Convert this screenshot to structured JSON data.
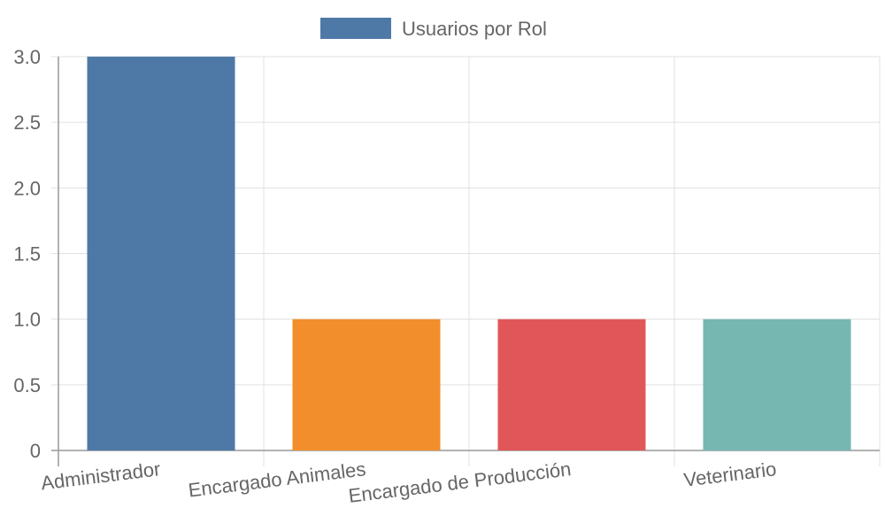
{
  "chart_data": {
    "type": "bar",
    "categories": [
      "Administrador",
      "Encargado Animales",
      "Encargado de Producción",
      "Veterinario"
    ],
    "series": [
      {
        "name": "Usuarios por Rol",
        "values": [
          3,
          1,
          1,
          1
        ],
        "colors": [
          "#4e79a7",
          "#f28e2b",
          "#e15759",
          "#76b7b2"
        ]
      }
    ],
    "ylim": [
      0,
      3
    ],
    "yticks": [
      "0",
      "0.5",
      "1.0",
      "1.5",
      "2.0",
      "2.5",
      "3.0"
    ],
    "grid": true,
    "legend": "top-center",
    "legend_color": "#4e79a7"
  }
}
